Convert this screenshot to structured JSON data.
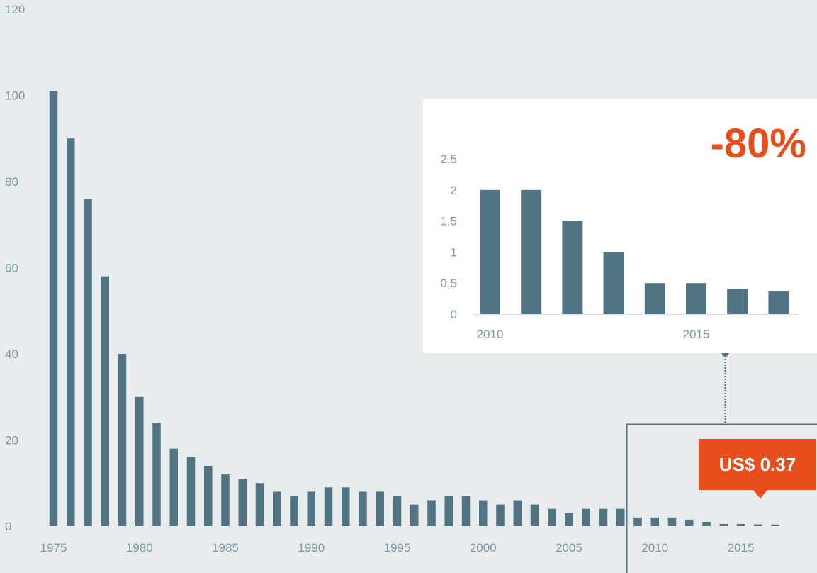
{
  "chart_data": [
    {
      "type": "bar",
      "title": "",
      "xlabel": "",
      "ylabel": "",
      "x": [
        1975,
        1976,
        1977,
        1978,
        1979,
        1980,
        1981,
        1982,
        1983,
        1984,
        1985,
        1986,
        1987,
        1988,
        1989,
        1990,
        1991,
        1992,
        1993,
        1994,
        1995,
        1996,
        1997,
        1998,
        1999,
        2000,
        2001,
        2002,
        2003,
        2004,
        2005,
        2006,
        2007,
        2008,
        2009,
        2010,
        2011,
        2012,
        2013,
        2014,
        2015,
        2016,
        2017
      ],
      "values": [
        101,
        90,
        76,
        58,
        40,
        30,
        24,
        18,
        16,
        14,
        12,
        11,
        10,
        8,
        7,
        8,
        9,
        9,
        8,
        8,
        7,
        5,
        6,
        7,
        7,
        6,
        5,
        6,
        5,
        4,
        3,
        4,
        4,
        4,
        2,
        2,
        2,
        1.5,
        1,
        0.5,
        0.5,
        0.4,
        0.37
      ],
      "x_ticks": [
        "1975",
        "1980",
        "1985",
        "1990",
        "1995",
        "2000",
        "2005",
        "2010",
        "2015"
      ],
      "y_ticks": [
        "0",
        "20",
        "40",
        "60",
        "80",
        "100",
        "120"
      ],
      "ylim": [
        0,
        120
      ],
      "grid": false,
      "legend": "none",
      "bar_color": "#517485"
    },
    {
      "type": "bar",
      "title": "",
      "x": [
        2010,
        2011,
        2012,
        2013,
        2014,
        2015,
        2016,
        2017
      ],
      "values": [
        2,
        2,
        1.5,
        1,
        0.5,
        0.5,
        0.4,
        0.37
      ],
      "x_ticks": [
        "2010",
        "2015"
      ],
      "y_ticks": [
        "0",
        "0,5",
        "1",
        "1,5",
        "2",
        "2,5"
      ],
      "ylim": [
        0,
        2.5
      ],
      "grid": false,
      "bar_color": "#517485"
    }
  ],
  "annotations": {
    "change_label": "-80%",
    "price_badge": "US$ 0.37"
  },
  "colors": {
    "background": "#e9ecec",
    "bar": "#517485",
    "accent": "#e84e1b",
    "inset_background": "#ffffff",
    "tick_text": "#7b9aa6"
  }
}
